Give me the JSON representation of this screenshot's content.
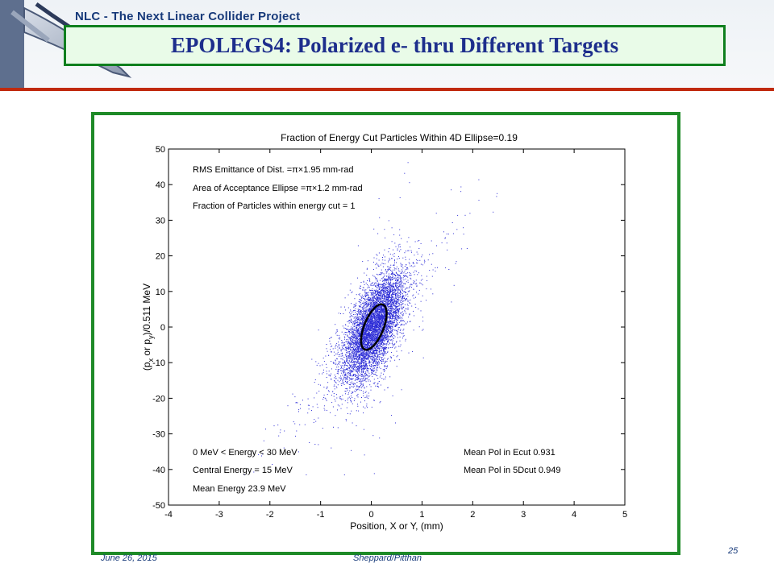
{
  "header": {
    "project": "NLC - The Next Linear Collider Project",
    "title": "EPOLEGS4: Polarized e- thru Different Targets"
  },
  "footer": {
    "date": "June 26, 2015",
    "author": "Sheppard/Pitthan",
    "page": "25"
  },
  "colors": {
    "title_text": "#1d2e8c",
    "title_border": "#0f7f1e",
    "rule": "#c02a0e",
    "frame": "#1e8a27",
    "points": "#2b2bd6"
  },
  "chart_data": {
    "type": "scatter",
    "title": "Fraction of Energy Cut Particles Within 4D Ellipse=0.19",
    "xlabel": "Position, X or Y, (mm)",
    "ylabel": "(p_x or p_y)/0.511 MeV",
    "ylabel_parts": [
      "(p",
      "x",
      " or p",
      "y",
      ")/0.511 MeV"
    ],
    "xlim": [
      -4,
      5
    ],
    "ylim": [
      -50,
      50
    ],
    "xticks": [
      -4,
      -3,
      -2,
      -1,
      0,
      1,
      2,
      3,
      4,
      5
    ],
    "yticks": [
      -50,
      -40,
      -30,
      -20,
      -10,
      0,
      10,
      20,
      30,
      40,
      50
    ],
    "grid": false,
    "distribution": {
      "description_shown": false,
      "center": [
        0.05,
        0
      ],
      "sigma_x_mm": 0.3,
      "corr_slope_per_mm": 16,
      "sigma_y_residual": 6,
      "count": 6500
    },
    "ellipse": {
      "cx": 0.05,
      "cy": 0,
      "semi_x": 0.3,
      "semi_y": 5.8
    },
    "annotations_top_left": [
      "RMS Emittance of Dist. =π×1.95 mm-rad",
      "Area of Acceptance Ellipse =π×1.2 mm-rad",
      "Fraction of Particles within energy cut = 1"
    ],
    "annotations_bottom_left": [
      "0 MeV < Energy < 30 MeV",
      "Central Energy = 15 MeV",
      "Mean Energy 23.9 MeV"
    ],
    "annotations_bottom_right": [
      "Mean Pol in Ecut  0.931",
      "Mean Pol in 5Dcut 0.949"
    ]
  }
}
